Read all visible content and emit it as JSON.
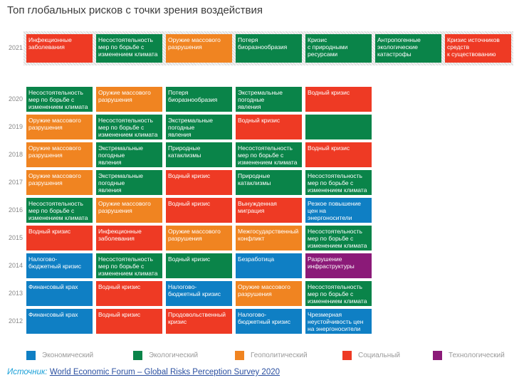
{
  "chart_data": {
    "type": "table",
    "title": "Топ глобальных рисков с точки зрения воздействия",
    "colors": {
      "Экономический": "#0f7fc4",
      "Экологический": "#0a8449",
      "Геополитический": "#f08421",
      "Социальный": "#ee3a24",
      "Технологический": "#8b1a78"
    },
    "legend": [
      "Экономический",
      "Экологический",
      "Геополитический",
      "Социальный",
      "Технологический"
    ],
    "rows": [
      {
        "year": "2021",
        "cells": [
          [
            "Инфекционные\nзаболевания",
            "Социальный"
          ],
          [
            "Несостоятельность\nмер по борьбе с\nизменением климата",
            "Экологический"
          ],
          [
            "Оружие массового\nразрушения",
            "Геополитический"
          ],
          [
            "Потеря\nбиоразнообразия",
            "Экологический"
          ],
          [
            "Кризис\nс природными\nресурсами",
            "Экологический"
          ],
          [
            "Антропогенные\nэкологические\nкатастрофы",
            "Экологический"
          ],
          [
            "Кризис источников\nсредств\nк существованию",
            "Социальный"
          ]
        ]
      },
      {
        "year": "2020",
        "cells": [
          [
            "Несостоятельность\nмер по борьбе с\nизменением климата",
            "Экологический"
          ],
          [
            "Оружие массового\nразрушения",
            "Геополитический"
          ],
          [
            "Потеря\nбиоразнообразия",
            "Экологический"
          ],
          [
            "Экстремальные\nпогодные\nявления",
            "Экологический"
          ],
          [
            "Водный кризис",
            "Социальный"
          ]
        ]
      },
      {
        "year": "2019",
        "cells": [
          [
            "Оружие массового\nразрушения",
            "Геополитический"
          ],
          [
            "Несостоятельность\nмер по борьбе с\nизменением климата",
            "Экологический"
          ],
          [
            "Экстремальные\nпогодные\nявления",
            "Экологический"
          ],
          [
            "Водный кризис",
            "Социальный"
          ],
          [
            "",
            "Экологический"
          ]
        ]
      },
      {
        "year": "2018",
        "cells": [
          [
            "Оружие массового\nразрушения",
            "Геополитический"
          ],
          [
            "Экстремальные\nпогодные\nявления",
            "Экологический"
          ],
          [
            "Природные\nкатаклизмы",
            "Экологический"
          ],
          [
            "Несостоятельность\nмер по борьбе с\nизменением климата",
            "Экологический"
          ],
          [
            "Водный кризис",
            "Социальный"
          ]
        ]
      },
      {
        "year": "2017",
        "cells": [
          [
            "Оружие массового\nразрушения",
            "Геополитический"
          ],
          [
            "Экстремальные\nпогодные\nявления",
            "Экологический"
          ],
          [
            "Водный кризис",
            "Социальный"
          ],
          [
            "Природные\nкатаклизмы",
            "Экологический"
          ],
          [
            "Несостоятельность\nмер по борьбе с\nизменением климата",
            "Экологический"
          ]
        ]
      },
      {
        "year": "2016",
        "cells": [
          [
            "Несостоятельность\nмер по борьбе с\nизменением климата",
            "Экологический"
          ],
          [
            "Оружие массового\nразрушения",
            "Геополитический"
          ],
          [
            "Водный кризис",
            "Социальный"
          ],
          [
            "Вынужденная\nмиграция",
            "Социальный"
          ],
          [
            "Резкое повышение\nцен на\nэнергоносители",
            "Экономический"
          ]
        ]
      },
      {
        "year": "2015",
        "cells": [
          [
            "Водный кризис",
            "Социальный"
          ],
          [
            "Инфекционные\nзаболевания",
            "Социальный"
          ],
          [
            "Оружие массового\nразрушения",
            "Геополитический"
          ],
          [
            "Межгосударственный\nконфликт",
            "Геополитический"
          ],
          [
            "Несостоятельность\nмер по борьбе с\nизменением климата",
            "Экологический"
          ]
        ]
      },
      {
        "year": "2014",
        "cells": [
          [
            "Налогово-\nбюджетный кризис",
            "Экономический"
          ],
          [
            "Несостоятельность\nмер по борьбе с\nизменением климата",
            "Экологический"
          ],
          [
            "Водный кризис",
            "Экологический"
          ],
          [
            "Безработица",
            "Экономический"
          ],
          [
            "Разрушение\nинфраструктуры",
            "Технологический"
          ]
        ]
      },
      {
        "year": "2013",
        "cells": [
          [
            "Финансовый крах",
            "Экономический"
          ],
          [
            "Водный кризис",
            "Социальный"
          ],
          [
            "Налогово-\nбюджетный кризис",
            "Экономический"
          ],
          [
            "Оружие массового\nразрушения",
            "Геополитический"
          ],
          [
            "Несостоятельность\nмер по борьбе с\nизменением климата",
            "Экологический"
          ]
        ]
      },
      {
        "year": "2012",
        "cells": [
          [
            "Финансовый крах",
            "Экономический"
          ],
          [
            "Водный кризис",
            "Социальный"
          ],
          [
            "Продовольственный\nкризис",
            "Социальный"
          ],
          [
            "Налогово-\nбюджетный кризис",
            "Экономический"
          ],
          [
            "Чрезмерная\nнеустойчивость цен\nна энергоносители",
            "Экономический"
          ]
        ]
      }
    ]
  },
  "source": {
    "label": "Источник:",
    "link": "World Economic Forum – Global Risks Perception Survey 2020"
  }
}
